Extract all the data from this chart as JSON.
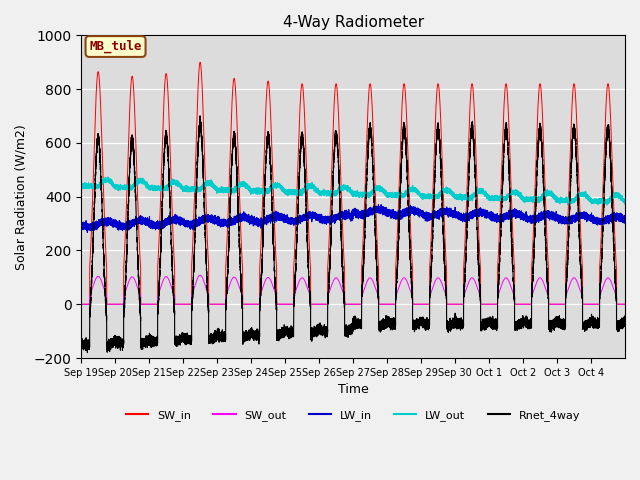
{
  "title": "4-Way Radiometer",
  "xlabel": "Time",
  "ylabel": "Solar Radiation (W/m2)",
  "ylim": [
    -200,
    1000
  ],
  "plot_bg_color": "#dcdcdc",
  "fig_bg_color": "#f0f0f0",
  "annotation_text": "MB_tule",
  "annotation_color": "#8B0000",
  "annotation_bg": "#ffffcc",
  "annotation_border": "#8B4513",
  "tick_labels": [
    "Sep 19",
    "Sep 20",
    "Sep 21",
    "Sep 22",
    "Sep 23",
    "Sep 24",
    "Sep 25",
    "Sep 26",
    "Sep 27",
    "Sep 28",
    "Sep 29",
    "Sep 30",
    "Oct 1",
    "Oct 2",
    "Oct 3",
    "Oct 4"
  ],
  "n_days": 16,
  "sw_in_peaks": [
    865,
    848,
    858,
    900,
    840,
    830,
    820,
    820,
    820,
    820,
    820,
    820,
    820,
    820,
    820,
    820
  ],
  "colors": {
    "SW_in": "#ff0000",
    "SW_out": "#ff00ff",
    "LW_in": "#0000cc",
    "LW_out": "#00cccc",
    "Rnet_4way": "#000000"
  },
  "legend_labels": [
    "SW_in",
    "SW_out",
    "LW_in",
    "LW_out",
    "Rnet_4way"
  ],
  "yticks": [
    -200,
    0,
    200,
    400,
    600,
    800,
    1000
  ]
}
